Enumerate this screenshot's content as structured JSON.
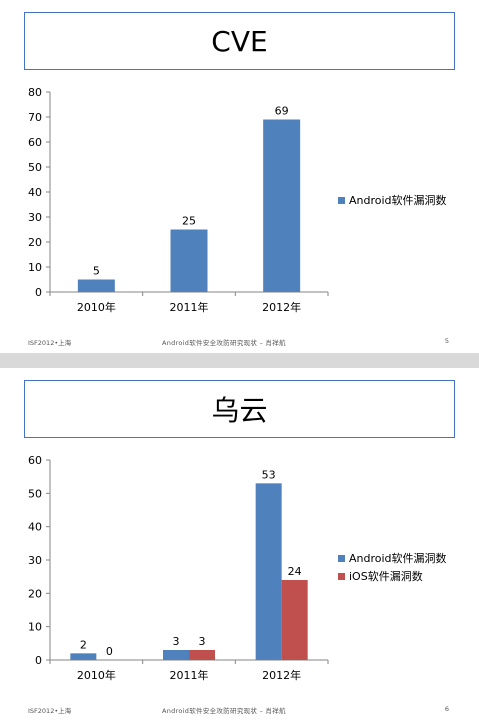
{
  "slides": [
    {
      "title": "CVE",
      "footer": {
        "left": "ISF2012•上海",
        "center": "Android软件安全攻防研究现状 – 肖祥航",
        "page": "5"
      }
    },
    {
      "title": "乌云",
      "footer": {
        "left": "ISF2012•上海",
        "center": "Android软件安全攻防研究现状 – 肖祥航",
        "page": "6"
      }
    }
  ],
  "colors": {
    "android": "#4f81bd",
    "ios": "#c0504d"
  },
  "chart_data": [
    {
      "type": "bar",
      "categories": [
        "2010年",
        "2011年",
        "2012年"
      ],
      "series": [
        {
          "name": "Android软件漏洞数",
          "values": [
            5,
            25,
            69
          ],
          "color": "#4f81bd"
        }
      ],
      "data_labels": true,
      "ylim": [
        0,
        80
      ],
      "yticks": [
        0,
        10,
        20,
        30,
        40,
        50,
        60,
        70,
        80
      ],
      "legend": "right",
      "grid": false
    },
    {
      "type": "bar",
      "categories": [
        "2010年",
        "2011年",
        "2012年"
      ],
      "series": [
        {
          "name": "Android软件漏洞数",
          "values": [
            2,
            3,
            53
          ],
          "color": "#4f81bd"
        },
        {
          "name": "iOS软件漏洞数",
          "values": [
            0,
            3,
            24
          ],
          "color": "#c0504d"
        }
      ],
      "data_labels": true,
      "ylim": [
        0,
        60
      ],
      "yticks": [
        0,
        10,
        20,
        30,
        40,
        50,
        60
      ],
      "legend": "right",
      "grid": false
    }
  ]
}
